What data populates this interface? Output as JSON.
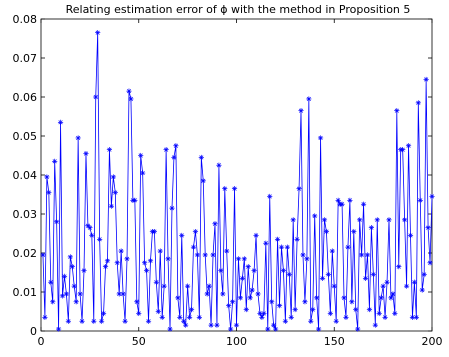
{
  "chart_data": {
    "type": "line",
    "title": "Relating estimation error of ϕ  with the method in Proposition 5",
    "xlabel": "",
    "ylabel": "",
    "xlim": [
      0,
      200
    ],
    "ylim": [
      0,
      0.08
    ],
    "xticks": [
      0,
      50,
      100,
      150,
      200
    ],
    "yticks": [
      0,
      0.01,
      0.02,
      0.03,
      0.04,
      0.05,
      0.06,
      0.07,
      0.08
    ],
    "xtick_labels": [
      "0",
      "50",
      "100",
      "150",
      "200"
    ],
    "ytick_labels": [
      "0",
      "0.01",
      "0.02",
      "0.03",
      "0.04",
      "0.05",
      "0.06",
      "0.07",
      "0.08"
    ],
    "grid": false,
    "box": true,
    "marker": "asterisk",
    "color": "#0000ff",
    "series": [
      {
        "x": [
          1,
          2,
          3,
          4,
          5,
          6,
          7,
          8,
          9,
          10,
          11,
          12,
          13,
          14,
          15,
          16,
          17,
          18,
          19,
          20,
          21,
          22,
          23,
          24,
          25,
          26,
          27,
          28,
          29,
          30,
          31,
          32,
          33,
          34,
          35,
          36,
          37,
          38,
          39,
          40,
          41,
          42,
          43,
          44,
          45,
          46,
          47,
          48,
          49,
          50,
          51,
          52,
          53,
          54,
          55,
          56,
          57,
          58,
          59,
          60,
          61,
          62,
          63,
          64,
          65,
          66,
          67,
          68,
          69,
          70,
          71,
          72,
          73,
          74,
          75,
          76,
          77,
          78,
          79,
          80,
          81,
          82,
          83,
          84,
          85,
          86,
          87,
          88,
          89,
          90,
          91,
          92,
          93,
          94,
          95,
          96,
          97,
          98,
          99,
          100,
          101,
          102,
          103,
          104,
          105,
          106,
          107,
          108,
          109,
          110,
          111,
          112,
          113,
          114,
          115,
          116,
          117,
          118,
          119,
          120,
          121,
          122,
          123,
          124,
          125,
          126,
          127,
          128,
          129,
          130,
          131,
          132,
          133,
          134,
          135,
          136,
          137,
          138,
          139,
          140,
          141,
          142,
          143,
          144,
          145,
          146,
          147,
          148,
          149,
          150,
          151,
          152,
          153,
          154,
          155,
          156,
          157,
          158,
          159,
          160,
          161,
          162,
          163,
          164,
          165,
          166,
          167,
          168,
          169,
          170,
          171,
          172,
          173,
          174,
          175,
          176,
          177,
          178,
          179,
          180,
          181,
          182,
          183,
          184,
          185,
          186,
          187,
          188,
          189,
          190,
          191,
          192,
          193,
          194,
          195,
          196,
          197,
          198,
          199,
          200
        ],
        "values": [
          0.0195,
          0.0035,
          0.0395,
          0.0355,
          0.0125,
          0.0075,
          0.0435,
          0.028,
          0.0005,
          0.0535,
          0.009,
          0.014,
          0.0095,
          0.0025,
          0.019,
          0.0165,
          0.0115,
          0.0075,
          0.0495,
          0.0095,
          0.0025,
          0.0155,
          0.0455,
          0.027,
          0.0265,
          0.0245,
          0.0025,
          0.06,
          0.0765,
          0.0235,
          0.0025,
          0.0045,
          0.0165,
          0.018,
          0.0465,
          0.032,
          0.0395,
          0.0355,
          0.0175,
          0.0095,
          0.0205,
          0.0095,
          0.0025,
          0.0185,
          0.0615,
          0.0595,
          0.0335,
          0.0335,
          0.0075,
          0.0045,
          0.045,
          0.0405,
          0.0175,
          0.0155,
          0.0025,
          0.018,
          0.0255,
          0.0255,
          0.0125,
          0.005,
          0.0205,
          0.0035,
          0.0115,
          0.0465,
          0.0185,
          0.0005,
          0.0315,
          0.0445,
          0.0475,
          0.0085,
          0.0035,
          0.0245,
          0.0025,
          0.0015,
          0.0115,
          0.0035,
          0.0055,
          0.0215,
          0.0255,
          0.0195,
          0.0035,
          0.0445,
          0.0385,
          0.0195,
          0.0095,
          0.0115,
          0.0015,
          0.0195,
          0.0275,
          0.0015,
          0.0425,
          0.0155,
          0.0095,
          0.0365,
          0.0205,
          0.0065,
          0.0005,
          0.0075,
          0.0365,
          0.0015,
          0.0185,
          0.0085,
          0.0135,
          0.0185,
          0.0055,
          0.0165,
          0.0085,
          0.0105,
          0.0155,
          0.0245,
          0.0095,
          0.0045,
          0.0035,
          0.0045,
          0.0225,
          0.0005,
          0.0345,
          0.0075,
          0.0015,
          0.0005,
          0.0235,
          0.0065,
          0.0215,
          0.0155,
          0.0025,
          0.0215,
          0.0145,
          0.0035,
          0.0285,
          0.0055,
          0.0235,
          0.0365,
          0.0565,
          0.0195,
          0.0075,
          0.0185,
          0.0595,
          0.0025,
          0.0055,
          0.0295,
          0.0085,
          0.0005,
          0.0495,
          0.0135,
          0.0285,
          0.0255,
          0.0145,
          0.0045,
          0.0205,
          0.0115,
          0.0025,
          0.0335,
          0.0325,
          0.0325,
          0.0085,
          0.0035,
          0.0215,
          0.0335,
          0.0075,
          0.0255,
          0.0055,
          0.0005,
          0.0285,
          0.0195,
          0.0325,
          0.0135,
          0.0195,
          0.0055,
          0.0265,
          0.0145,
          0.0015,
          0.0285,
          0.0045,
          0.0085,
          0.0115,
          0.0035,
          0.0125,
          0.0285,
          0.0085,
          0.0095,
          0.0045,
          0.0565,
          0.0165,
          0.0465,
          0.0465,
          0.0285,
          0.0115,
          0.0475,
          0.0245,
          0.0035,
          0.0125,
          0.0035,
          0.0585,
          0.0335,
          0.0105,
          0.0145,
          0.0645,
          0.0265,
          0.0175,
          0.0345
        ]
      }
    ]
  }
}
